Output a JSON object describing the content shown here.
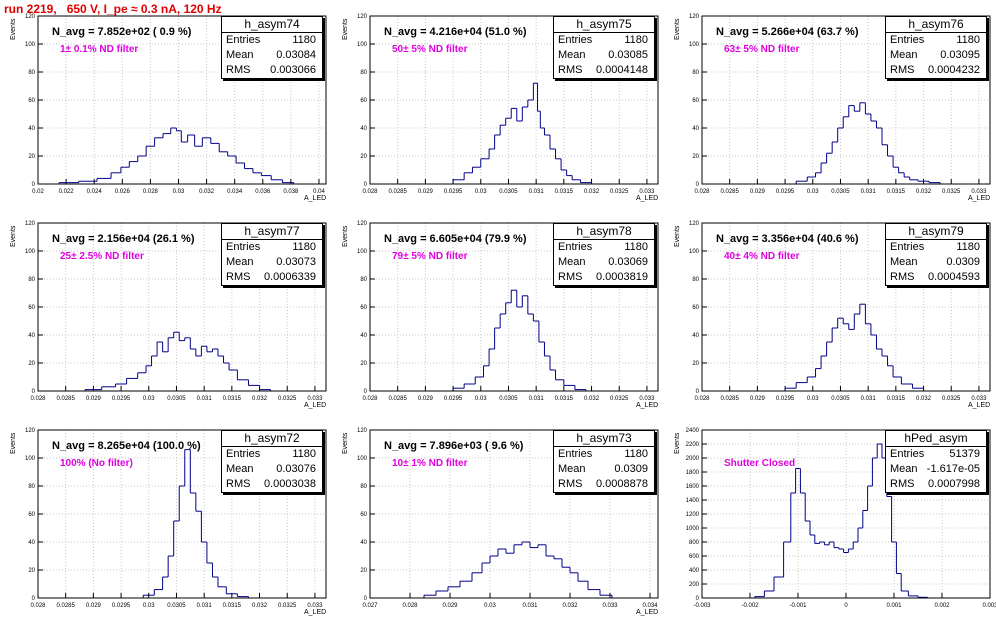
{
  "header": {
    "title": "run 2219,   650 V, I_pe ≈ 0.3 nA, 120 Hz"
  },
  "colors": {
    "hist": "#000088",
    "frame": "#000000",
    "grid": "#c8c8c8",
    "title": "#e00000",
    "filter_label": "#e000e0"
  },
  "chart_data": [
    {
      "type": "histogram",
      "name": "h_asym74",
      "n_avg": "N_avg = 7.852e+02 ( 0.9 %)",
      "filter": "1± 0.1% ND filter",
      "stats": [
        [
          "Entries",
          "1180"
        ],
        [
          "Mean",
          "0.03084"
        ],
        [
          "RMS",
          "0.003066"
        ]
      ],
      "xlabel": "A_LED",
      "ylabel": "Events",
      "xlim": [
        0.02,
        0.0405
      ],
      "ylim": [
        0,
        120
      ],
      "xticks": [
        "0.02",
        "0.022",
        "0.024",
        "0.026",
        "0.028",
        "0.03",
        "0.032",
        "0.034",
        "0.036",
        "0.038",
        "0.04"
      ],
      "yticks": [
        "0",
        "20",
        "40",
        "60",
        "80",
        "100",
        "120"
      ],
      "x": [
        0.0222,
        0.0236,
        0.0248,
        0.0256,
        0.0262,
        0.0268,
        0.0274,
        0.028,
        0.0286,
        0.0292,
        0.0297,
        0.03,
        0.0304,
        0.0309,
        0.0314,
        0.032,
        0.0326,
        0.0332,
        0.0338,
        0.0344,
        0.035,
        0.0356,
        0.0362,
        0.037,
        0.0378
      ],
      "y": [
        1,
        2,
        4,
        8,
        12,
        16,
        20,
        27,
        33,
        36,
        40,
        38,
        30,
        35,
        27,
        33,
        29,
        23,
        20,
        15,
        11,
        8,
        6,
        3,
        1
      ]
    },
    {
      "type": "histogram",
      "name": "h_asym75",
      "n_avg": "N_avg = 4.216e+04 (51.0 %)",
      "filter": "50± 5% ND filter",
      "stats": [
        [
          "Entries",
          "1180"
        ],
        [
          "Mean",
          "0.03085"
        ],
        [
          "RMS",
          "0.0004148"
        ]
      ],
      "xlabel": "A_LED",
      "ylabel": "Events",
      "xlim": [
        0.028,
        0.0332
      ],
      "ylim": [
        0,
        120
      ],
      "xticks": [
        "0.028",
        "0.0285",
        "0.029",
        "0.0295",
        "0.03",
        "0.0305",
        "0.031",
        "0.0315",
        "0.032",
        "0.0325",
        "0.033"
      ],
      "yticks": [
        "0",
        "20",
        "40",
        "60",
        "80",
        "100",
        "120"
      ],
      "x": [
        0.0296,
        0.0298,
        0.0299,
        0.0301,
        0.0302,
        0.0303,
        0.0304,
        0.0305,
        0.0306,
        0.0307,
        0.0308,
        0.0309,
        0.031,
        0.03105,
        0.0311,
        0.0312,
        0.0313,
        0.0314,
        0.0315,
        0.0316,
        0.0317,
        0.0319
      ],
      "y": [
        3,
        8,
        12,
        18,
        25,
        35,
        42,
        47,
        54,
        45,
        55,
        60,
        72,
        52,
        40,
        35,
        25,
        18,
        10,
        6,
        3,
        1
      ]
    },
    {
      "type": "histogram",
      "name": "h_asym76",
      "n_avg": "N_avg = 5.266e+04 (63.7 %)",
      "filter": "63± 5% ND filter",
      "stats": [
        [
          "Entries",
          "1180"
        ],
        [
          "Mean",
          "0.03095"
        ],
        [
          "RMS",
          "0.0004232"
        ]
      ],
      "xlabel": "A_LED",
      "ylabel": "Events",
      "xlim": [
        0.028,
        0.0332
      ],
      "ylim": [
        0,
        120
      ],
      "xticks": [
        "0.028",
        "0.0285",
        "0.029",
        "0.0295",
        "0.03",
        "0.0305",
        "0.031",
        "0.0315",
        "0.032",
        "0.0325",
        "0.033"
      ],
      "yticks": [
        "0",
        "20",
        "40",
        "60",
        "80",
        "100",
        "120"
      ],
      "x": [
        0.0298,
        0.03,
        0.0301,
        0.0302,
        0.0303,
        0.0304,
        0.0305,
        0.0306,
        0.0307,
        0.0308,
        0.0309,
        0.031,
        0.0311,
        0.0312,
        0.0313,
        0.0314,
        0.0315,
        0.0316,
        0.0317,
        0.0318,
        0.032,
        0.0322
      ],
      "y": [
        2,
        5,
        8,
        15,
        22,
        30,
        40,
        48,
        56,
        52,
        58,
        50,
        45,
        40,
        28,
        20,
        12,
        8,
        5,
        3,
        2,
        1
      ]
    },
    {
      "type": "histogram",
      "name": "h_asym77",
      "n_avg": "N_avg = 2.156e+04 (26.1 %)",
      "filter": "25± 2.5% ND filter",
      "stats": [
        [
          "Entries",
          "1180"
        ],
        [
          "Mean",
          "0.03073"
        ],
        [
          "RMS",
          "0.0006339"
        ]
      ],
      "xlabel": "A_LED",
      "ylabel": "Events",
      "xlim": [
        0.028,
        0.0332
      ],
      "ylim": [
        0,
        120
      ],
      "xticks": [
        "0.028",
        "0.0285",
        "0.029",
        "0.0295",
        "0.03",
        "0.0305",
        "0.031",
        "0.0315",
        "0.032",
        "0.0325",
        "0.033"
      ],
      "yticks": [
        "0",
        "20",
        "40",
        "60",
        "80",
        "100",
        "120"
      ],
      "x": [
        0.029,
        0.0293,
        0.0295,
        0.0297,
        0.0299,
        0.03,
        0.0301,
        0.0302,
        0.0303,
        0.0304,
        0.0305,
        0.0306,
        0.0307,
        0.0308,
        0.0309,
        0.031,
        0.0311,
        0.0312,
        0.0313,
        0.0314,
        0.0315,
        0.0317,
        0.0319,
        0.0321
      ],
      "y": [
        1,
        3,
        5,
        9,
        13,
        18,
        25,
        35,
        28,
        38,
        42,
        36,
        38,
        30,
        25,
        32,
        28,
        30,
        25,
        20,
        15,
        8,
        4,
        1
      ]
    },
    {
      "type": "histogram",
      "name": "h_asym78",
      "n_avg": "N_avg = 6.605e+04 (79.9 %)",
      "filter": "79± 5% ND filter",
      "stats": [
        [
          "Entries",
          "1180"
        ],
        [
          "Mean",
          "0.03069"
        ],
        [
          "RMS",
          "0.0003819"
        ]
      ],
      "xlabel": "A_LED",
      "ylabel": "Events",
      "xlim": [
        0.028,
        0.0332
      ],
      "ylim": [
        0,
        120
      ],
      "xticks": [
        "0.028",
        "0.0285",
        "0.029",
        "0.0295",
        "0.03",
        "0.0305",
        "0.031",
        "0.0315",
        "0.032",
        "0.0325",
        "0.033"
      ],
      "yticks": [
        "0",
        "20",
        "40",
        "60",
        "80",
        "100",
        "120"
      ],
      "x": [
        0.0296,
        0.0298,
        0.03,
        0.0301,
        0.0302,
        0.0303,
        0.0304,
        0.0305,
        0.0306,
        0.0307,
        0.0308,
        0.0309,
        0.031,
        0.0311,
        0.0312,
        0.0313,
        0.0314,
        0.0316,
        0.0318
      ],
      "y": [
        2,
        5,
        10,
        18,
        30,
        45,
        55,
        63,
        72,
        60,
        68,
        55,
        50,
        35,
        25,
        15,
        8,
        4,
        1
      ]
    },
    {
      "type": "histogram",
      "name": "h_asym79",
      "n_avg": "N_avg = 3.356e+04 (40.6 %)",
      "filter": "40± 4% ND filter",
      "stats": [
        [
          "Entries",
          "1180"
        ],
        [
          "Mean",
          "0.0309"
        ],
        [
          "RMS",
          "0.0004593"
        ]
      ],
      "xlabel": "A_LED",
      "ylabel": "Events",
      "xlim": [
        0.028,
        0.0332
      ],
      "ylim": [
        0,
        120
      ],
      "xticks": [
        "0.028",
        "0.0285",
        "0.029",
        "0.0295",
        "0.03",
        "0.0305",
        "0.031",
        "0.0315",
        "0.032",
        "0.0325",
        "0.033"
      ],
      "yticks": [
        "0",
        "20",
        "40",
        "60",
        "80",
        "100",
        "120"
      ],
      "x": [
        0.0296,
        0.0298,
        0.03,
        0.0301,
        0.0302,
        0.0303,
        0.0304,
        0.0305,
        0.0306,
        0.0307,
        0.0308,
        0.0309,
        0.031,
        0.0311,
        0.0312,
        0.0313,
        0.0314,
        0.0315,
        0.0317,
        0.0319
      ],
      "y": [
        2,
        6,
        10,
        16,
        25,
        35,
        45,
        52,
        48,
        44,
        55,
        62,
        48,
        40,
        30,
        25,
        18,
        10,
        5,
        2
      ]
    },
    {
      "type": "histogram",
      "name": "h_asym72",
      "n_avg": "N_avg = 8.265e+04 (100.0 %)",
      "filter": "100% (No filter)",
      "stats": [
        [
          "Entries",
          "1180"
        ],
        [
          "Mean",
          "0.03076"
        ],
        [
          "RMS",
          "0.0003038"
        ]
      ],
      "xlabel": "A_LED",
      "ylabel": "Events",
      "xlim": [
        0.028,
        0.0332
      ],
      "ylim": [
        0,
        120
      ],
      "xticks": [
        "0.028",
        "0.0285",
        "0.029",
        "0.0295",
        "0.03",
        "0.0305",
        "0.031",
        "0.0315",
        "0.032",
        "0.0325",
        "0.033"
      ],
      "yticks": [
        "0",
        "20",
        "40",
        "60",
        "80",
        "100",
        "120"
      ],
      "x": [
        0.03,
        0.0302,
        0.0303,
        0.0304,
        0.0305,
        0.0306,
        0.0307,
        0.0308,
        0.0309,
        0.031,
        0.0311,
        0.0312,
        0.0313,
        0.0315,
        0.0317
      ],
      "y": [
        2,
        6,
        15,
        30,
        55,
        80,
        106,
        75,
        62,
        40,
        25,
        15,
        8,
        3,
        1
      ]
    },
    {
      "type": "histogram",
      "name": "h_asym73",
      "n_avg": "N_avg = 7.896e+03 ( 9.6 %)",
      "filter": "10± 1% ND filter",
      "stats": [
        [
          "Entries",
          "1180"
        ],
        [
          "Mean",
          "0.0309"
        ],
        [
          "RMS",
          "0.0008878"
        ]
      ],
      "xlabel": "A_LED",
      "ylabel": "Events",
      "xlim": [
        0.027,
        0.0342
      ],
      "ylim": [
        0,
        120
      ],
      "xticks": [
        "0.027",
        "0.028",
        "0.029",
        "0.03",
        "0.031",
        "0.032",
        "0.033",
        "0.034"
      ],
      "yticks": [
        "0",
        "20",
        "40",
        "60",
        "80",
        "100",
        "120"
      ],
      "x": [
        0.0285,
        0.0288,
        0.0291,
        0.0294,
        0.0297,
        0.0299,
        0.0301,
        0.0303,
        0.0305,
        0.0307,
        0.0309,
        0.0311,
        0.0313,
        0.0315,
        0.0317,
        0.0319,
        0.0321,
        0.0323,
        0.0326,
        0.0329
      ],
      "y": [
        2,
        5,
        8,
        12,
        18,
        25,
        30,
        35,
        32,
        38,
        40,
        36,
        38,
        30,
        28,
        22,
        18,
        12,
        6,
        2
      ]
    },
    {
      "type": "histogram",
      "name": "hPed_asym",
      "n_avg": "",
      "filter": "Shutter Closed",
      "stats": [
        [
          "Entries",
          "51379"
        ],
        [
          "Mean",
          "-1.617e-05"
        ],
        [
          "RMS",
          "0.0007998"
        ]
      ],
      "xlabel": "",
      "ylabel": "Events",
      "xlim": [
        -0.003,
        0.003
      ],
      "ylim": [
        0,
        2400
      ],
      "xticks": [
        "-0.003",
        "-0.002",
        "-0.001",
        "0",
        "0.001",
        "0.002",
        "0.003"
      ],
      "yticks": [
        "0",
        "200",
        "400",
        "600",
        "800",
        "1000",
        "1200",
        "1400",
        "1600",
        "1800",
        "2000",
        "2200",
        "2400"
      ],
      "x": [
        -0.0018,
        -0.0016,
        -0.0014,
        -0.0012,
        -0.0011,
        -0.001,
        -0.0009,
        -0.0008,
        -0.0007,
        -0.0006,
        -0.0005,
        -0.0004,
        -0.0003,
        -0.0002,
        -0.0001,
        0.0,
        0.0001,
        0.0002,
        0.0003,
        0.0004,
        0.0005,
        0.0006,
        0.0007,
        0.0008,
        0.0009,
        0.001,
        0.0011,
        0.0012,
        0.0014,
        0.0016
      ],
      "y": [
        20,
        100,
        300,
        800,
        1500,
        1850,
        1500,
        1100,
        900,
        780,
        800,
        760,
        800,
        720,
        700,
        650,
        700,
        800,
        1000,
        1250,
        1600,
        2000,
        2200,
        2000,
        1450,
        800,
        350,
        100,
        30,
        10
      ]
    }
  ]
}
